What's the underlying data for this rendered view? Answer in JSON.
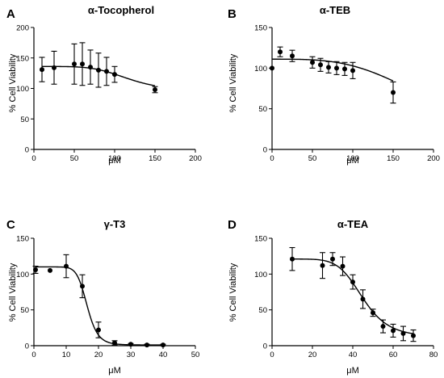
{
  "chart_data": [
    {
      "type": "scatter",
      "panel": "A",
      "title": "α-Tocopherol",
      "xlabel": "μM",
      "ylabel": "% Cell Viability",
      "xlim": [
        0,
        200
      ],
      "ylim": [
        0,
        200
      ],
      "xticks": [
        0,
        50,
        100,
        150,
        200
      ],
      "yticks": [
        0,
        50,
        100,
        150,
        200
      ],
      "fit": {
        "model": "sigmoid",
        "top": 136,
        "bottom": 95,
        "ec50": 118,
        "hill": 5
      },
      "points": [
        {
          "x": 10,
          "y": 131,
          "err": 20
        },
        {
          "x": 25,
          "y": 134,
          "err": 27
        },
        {
          "x": 50,
          "y": 140,
          "err": 33
        },
        {
          "x": 60,
          "y": 140,
          "err": 35
        },
        {
          "x": 70,
          "y": 135,
          "err": 28
        },
        {
          "x": 80,
          "y": 130,
          "err": 28
        },
        {
          "x": 90,
          "y": 128,
          "err": 23
        },
        {
          "x": 100,
          "y": 123,
          "err": 13
        },
        {
          "x": 150,
          "y": 98,
          "err": 5
        }
      ],
      "grid": false,
      "legend": "none"
    },
    {
      "type": "scatter",
      "panel": "B",
      "title": "α-TEB",
      "xlabel": "μM",
      "ylabel": "% Cell Viability",
      "xlim": [
        0,
        200
      ],
      "ylim": [
        0,
        150
      ],
      "xticks": [
        0,
        50,
        100,
        150,
        200
      ],
      "yticks": [
        0,
        50,
        100,
        150
      ],
      "fit": {
        "model": "sigmoid",
        "top": 111,
        "bottom": 0,
        "ec50": 210,
        "hill": 3.4
      },
      "points": [
        {
          "x": 0,
          "y": 100,
          "err": 0
        },
        {
          "x": 10,
          "y": 120,
          "err": 6
        },
        {
          "x": 25,
          "y": 115,
          "err": 7
        },
        {
          "x": 50,
          "y": 107,
          "err": 7
        },
        {
          "x": 60,
          "y": 104,
          "err": 8
        },
        {
          "x": 70,
          "y": 101,
          "err": 7
        },
        {
          "x": 80,
          "y": 100,
          "err": 8
        },
        {
          "x": 90,
          "y": 99,
          "err": 8
        },
        {
          "x": 100,
          "y": 97,
          "err": 10
        },
        {
          "x": 150,
          "y": 70,
          "err": 13
        }
      ],
      "grid": false,
      "legend": "none"
    },
    {
      "type": "scatter",
      "panel": "C",
      "title": "γ-T3",
      "xlabel": "μM",
      "ylabel": "% Cell Viability",
      "xlim": [
        0,
        50
      ],
      "ylim": [
        0,
        150
      ],
      "xticks": [
        0,
        10,
        20,
        30,
        40,
        50
      ],
      "yticks": [
        0,
        50,
        100,
        150
      ],
      "fit": {
        "model": "sigmoid",
        "top": 110,
        "bottom": 1,
        "ec50": 16.5,
        "hill": 10
      },
      "points": [
        {
          "x": 0.5,
          "y": 106,
          "err": 5
        },
        {
          "x": 5,
          "y": 105,
          "err": 0
        },
        {
          "x": 10,
          "y": 111,
          "err": 16
        },
        {
          "x": 15,
          "y": 83,
          "err": 16
        },
        {
          "x": 20,
          "y": 22,
          "err": 11
        },
        {
          "x": 25,
          "y": 4,
          "err": 3
        },
        {
          "x": 30,
          "y": 2,
          "err": 1
        },
        {
          "x": 35,
          "y": 1,
          "err": 1
        },
        {
          "x": 40,
          "y": 1,
          "err": 1
        }
      ],
      "grid": false,
      "legend": "none"
    },
    {
      "type": "scatter",
      "panel": "D",
      "title": "α-TEA",
      "xlabel": "μM",
      "ylabel": "% Cell Viability",
      "xlim": [
        0,
        80
      ],
      "ylim": [
        0,
        150
      ],
      "xticks": [
        0,
        20,
        40,
        60,
        80
      ],
      "yticks": [
        0,
        50,
        100,
        150
      ],
      "fit": {
        "model": "sigmoid",
        "top": 121,
        "bottom": 12,
        "ec50": 45,
        "hill": 7
      },
      "points": [
        {
          "x": 10,
          "y": 121,
          "err": 16
        },
        {
          "x": 25,
          "y": 112,
          "err": 18
        },
        {
          "x": 30,
          "y": 121,
          "err": 9
        },
        {
          "x": 35,
          "y": 111,
          "err": 13
        },
        {
          "x": 40,
          "y": 89,
          "err": 10
        },
        {
          "x": 45,
          "y": 65,
          "err": 13
        },
        {
          "x": 50,
          "y": 46,
          "err": 5
        },
        {
          "x": 55,
          "y": 27,
          "err": 9
        },
        {
          "x": 60,
          "y": 21,
          "err": 9
        },
        {
          "x": 65,
          "y": 17,
          "err": 10
        },
        {
          "x": 70,
          "y": 14,
          "err": 8
        }
      ],
      "grid": false,
      "legend": "none"
    }
  ]
}
